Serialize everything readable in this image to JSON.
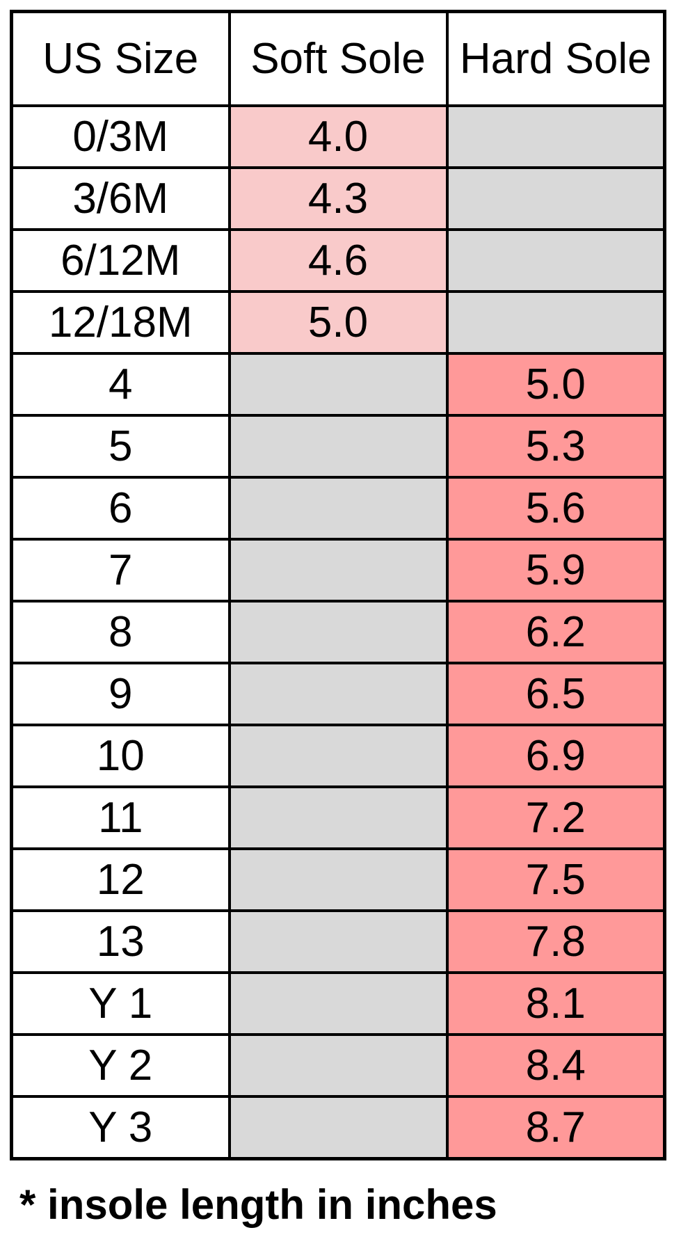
{
  "colors": {
    "soft_sole_bg": "#F9CACA",
    "hard_sole_bg": "#FF9999",
    "empty_bg": "#D9D9D9",
    "border": "#000000",
    "text": "#000000"
  },
  "table": {
    "columns": [
      {
        "label": "US Size"
      },
      {
        "label": "Soft Sole"
      },
      {
        "label": "Hard Sole"
      }
    ],
    "rows": [
      {
        "us_size": "0/3M",
        "soft_sole": "4.0",
        "hard_sole": ""
      },
      {
        "us_size": "3/6M",
        "soft_sole": "4.3",
        "hard_sole": ""
      },
      {
        "us_size": "6/12M",
        "soft_sole": "4.6",
        "hard_sole": ""
      },
      {
        "us_size": "12/18M",
        "soft_sole": "5.0",
        "hard_sole": ""
      },
      {
        "us_size": "4",
        "soft_sole": "",
        "hard_sole": "5.0"
      },
      {
        "us_size": "5",
        "soft_sole": "",
        "hard_sole": "5.3"
      },
      {
        "us_size": "6",
        "soft_sole": "",
        "hard_sole": "5.6"
      },
      {
        "us_size": "7",
        "soft_sole": "",
        "hard_sole": "5.9"
      },
      {
        "us_size": "8",
        "soft_sole": "",
        "hard_sole": "6.2"
      },
      {
        "us_size": "9",
        "soft_sole": "",
        "hard_sole": "6.5"
      },
      {
        "us_size": "10",
        "soft_sole": "",
        "hard_sole": "6.9"
      },
      {
        "us_size": "11",
        "soft_sole": "",
        "hard_sole": "7.2"
      },
      {
        "us_size": "12",
        "soft_sole": "",
        "hard_sole": "7.5"
      },
      {
        "us_size": "13",
        "soft_sole": "",
        "hard_sole": "7.8"
      },
      {
        "us_size": "Y 1",
        "soft_sole": "",
        "hard_sole": "8.1"
      },
      {
        "us_size": "Y 2",
        "soft_sole": "",
        "hard_sole": "8.4"
      },
      {
        "us_size": "Y 3",
        "soft_sole": "",
        "hard_sole": "8.7"
      }
    ]
  },
  "footnote": "* insole length in inches",
  "chart_data": {
    "type": "table",
    "columns": [
      "US Size",
      "Soft Sole",
      "Hard Sole"
    ],
    "rows": [
      [
        "0/3M",
        "4.0",
        ""
      ],
      [
        "3/6M",
        "4.3",
        ""
      ],
      [
        "6/12M",
        "4.6",
        ""
      ],
      [
        "12/18M",
        "5.0",
        ""
      ],
      [
        "4",
        "",
        "5.0"
      ],
      [
        "5",
        "",
        "5.3"
      ],
      [
        "6",
        "",
        "5.6"
      ],
      [
        "7",
        "",
        "5.9"
      ],
      [
        "8",
        "",
        "6.2"
      ],
      [
        "9",
        "",
        "6.5"
      ],
      [
        "10",
        "",
        "6.9"
      ],
      [
        "11",
        "",
        "7.2"
      ],
      [
        "12",
        "",
        "7.5"
      ],
      [
        "13",
        "",
        "7.8"
      ],
      [
        "Y 1",
        "",
        "8.1"
      ],
      [
        "Y 2",
        "",
        "8.4"
      ],
      [
        "Y 3",
        "",
        "8.7"
      ]
    ],
    "note": "* insole length in inches",
    "units": "inches"
  }
}
